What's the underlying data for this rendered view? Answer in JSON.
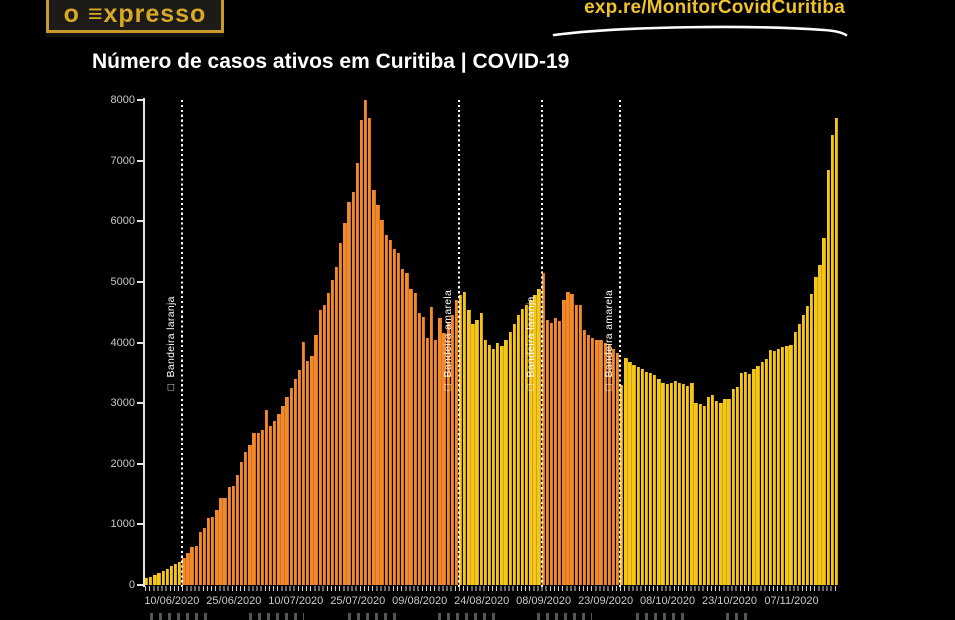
{
  "header": {
    "logo_text": "o ≡xpresso",
    "url": "exp.re/MonitorCovidCuritiba"
  },
  "title": "Número de casos ativos em Curitiba | COVID-19",
  "chart_data": {
    "type": "bar",
    "title": "Número de casos ativos em Curitiba | COVID-19",
    "xlabel": "",
    "ylabel": "",
    "ylim": [
      0,
      8000
    ],
    "grid": false,
    "legend": "none",
    "y_ticks": [
      0,
      1000,
      2000,
      3000,
      4000,
      5000,
      6000,
      7000,
      8000
    ],
    "start_date": "04/06/2020",
    "end_date": "18/11/2020",
    "x_ticks": [
      {
        "index": 6,
        "label": "10/06/2020"
      },
      {
        "index": 21,
        "label": "25/06/2020"
      },
      {
        "index": 36,
        "label": "10/07/2020"
      },
      {
        "index": 51,
        "label": "25/07/2020"
      },
      {
        "index": 66,
        "label": "09/08/2020"
      },
      {
        "index": 81,
        "label": "24/08/2020"
      },
      {
        "index": 96,
        "label": "08/09/2020"
      },
      {
        "index": 111,
        "label": "23/09/2020"
      },
      {
        "index": 126,
        "label": "08/10/2020"
      },
      {
        "index": 141,
        "label": "23/10/2020"
      },
      {
        "index": 156,
        "label": "07/11/2020"
      }
    ],
    "colors": {
      "bandeira_amarela": "#F4C51B",
      "bandeira_amarela_edge": "#C79B05",
      "bandeira_laranja": "#F1892E",
      "bandeira_laranja_edge": "#D26E12"
    },
    "flag_glyph": "□",
    "flag_lines": [
      {
        "index": 9,
        "label": "Bandeira laranja"
      },
      {
        "index": 76,
        "label": "Bandeira amarela"
      },
      {
        "index": 96,
        "label": "Bandeira laranja"
      },
      {
        "index": 115,
        "label": "Bandeira amarela"
      }
    ],
    "segments": [
      {
        "flag": "bandeira_amarela",
        "start": "04/06/2020",
        "values": [
          115,
          135,
          160,
          190,
          225,
          265,
          310,
          345,
          385
        ]
      },
      {
        "flag": "bandeira_laranja",
        "start": "13/06/2020",
        "values": [
          445,
          530,
          630,
          640,
          875,
          940,
          1100,
          1120,
          1240,
          1430,
          1430,
          1620,
          1640,
          1815,
          2030,
          2200,
          2310,
          2500,
          2500,
          2560,
          2890,
          2620,
          2700,
          2820,
          2950,
          3100,
          3250,
          3400,
          3550,
          4010,
          3700,
          3780,
          4120,
          4530,
          4620,
          4810,
          5030,
          5250,
          5640,
          5970,
          6320,
          6480,
          6960,
          7670,
          8000,
          7700,
          6510,
          6270,
          6020,
          5770,
          5690,
          5550,
          5470,
          5220,
          5140,
          4890,
          4810,
          4480,
          4420,
          4070,
          4590,
          4040,
          4400,
          4150,
          4320,
          4450,
          4700
        ]
      },
      {
        "flag": "bandeira_amarela",
        "start": "19/08/2020",
        "values": [
          4780,
          4840,
          4530,
          4310,
          4370,
          4480,
          4040,
          3960,
          3900,
          3990,
          3940,
          4040,
          4180,
          4310,
          4450,
          4550,
          4620,
          4700,
          4780,
          4880
        ]
      },
      {
        "flag": "bandeira_laranja",
        "start": "08/09/2020",
        "values": [
          5140,
          4370,
          4330,
          4400,
          4350,
          4700,
          4840,
          4800,
          4620,
          4620,
          4210,
          4130,
          4070,
          4040,
          4040,
          4000,
          3960,
          3890,
          3820
        ]
      },
      {
        "flag": "bandeira_amarela",
        "start": "27/09/2020",
        "values": [
          3300,
          3740,
          3680,
          3630,
          3600,
          3570,
          3520,
          3500,
          3460,
          3400,
          3330,
          3310,
          3330,
          3360,
          3330,
          3310,
          3290,
          3330,
          3000,
          2980,
          2960,
          3100,
          3130,
          3030,
          3000,
          3070,
          3070,
          3240,
          3260,
          3490,
          3520,
          3480,
          3560,
          3610,
          3680,
          3720,
          3880,
          3860,
          3900,
          3930,
          3950,
          3960,
          4180,
          4310,
          4450,
          4600,
          4800,
          5080,
          5280,
          5720,
          6840,
          7420,
          7700
        ]
      }
    ]
  }
}
